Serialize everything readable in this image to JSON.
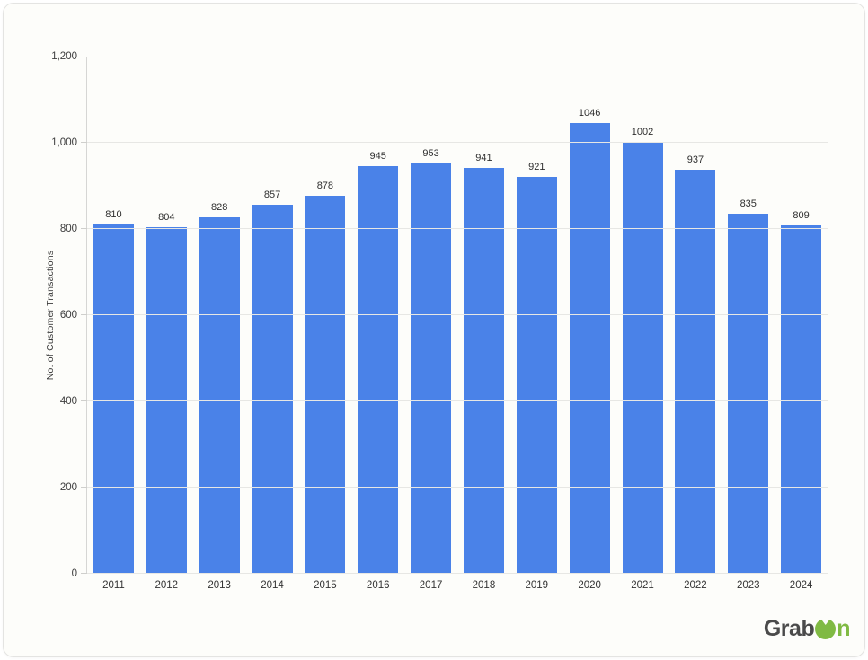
{
  "chart_data": {
    "type": "bar",
    "title": "",
    "xlabel": "",
    "ylabel": "No. of Customer Transactions",
    "categories": [
      "2011",
      "2012",
      "2013",
      "2014",
      "2015",
      "2016",
      "2017",
      "2018",
      "2019",
      "2020",
      "2021",
      "2022",
      "2023",
      "2024"
    ],
    "values": [
      810,
      804,
      828,
      857,
      878,
      945,
      953,
      941,
      921,
      1046,
      1002,
      937,
      835,
      809
    ],
    "ylim": [
      0,
      1200
    ],
    "ytick_interval": 200,
    "yticks": [
      "0",
      "200",
      "400",
      "600",
      "800",
      "1,000",
      "1,200"
    ],
    "grid": true,
    "legend": "none",
    "bar_color": "#4A82E8"
  },
  "branding": {
    "logo_part1": "Grab",
    "logo_part2": "n",
    "logo_o_icon": "green-circle-o",
    "grab_color": "#4a4a4a",
    "on_color": "#80ba43"
  }
}
